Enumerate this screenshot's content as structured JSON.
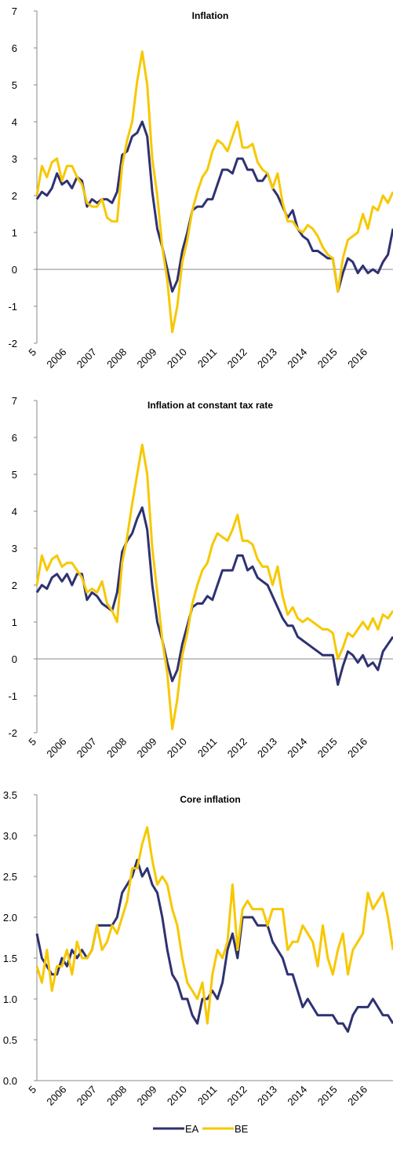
{
  "chart_data": [
    {
      "type": "line",
      "title": "Inflation",
      "categories": [
        "5",
        null,
        null,
        null,
        null,
        null,
        "2006",
        null,
        null,
        null,
        null,
        null,
        "2007",
        null,
        null,
        null,
        null,
        null,
        "2008",
        null,
        null,
        null,
        null,
        null,
        "2009",
        null,
        null,
        null,
        null,
        null,
        "2010",
        null,
        null,
        null,
        null,
        null,
        "2011",
        null,
        null,
        null,
        null,
        null,
        "2012",
        null,
        null,
        null,
        null,
        null,
        "2013",
        null,
        null,
        null,
        null,
        null,
        "2014",
        null,
        null,
        null,
        null,
        null,
        "2015",
        null,
        null,
        null,
        null,
        null,
        "2016",
        null,
        null,
        null,
        null,
        null
      ],
      "series": [
        {
          "color": "#2e3272",
          "values": [
            1.9,
            2.1,
            2.0,
            2.2,
            2.6,
            2.3,
            2.4,
            2.2,
            2.5,
            2.4,
            1.7,
            1.9,
            1.8,
            1.9,
            1.9,
            1.8,
            2.1,
            3.1,
            3.2,
            3.6,
            3.7,
            4.0,
            3.6,
            2.1,
            1.1,
            0.6,
            0.0,
            -0.6,
            -0.3,
            0.5,
            1.0,
            1.6,
            1.7,
            1.7,
            1.9,
            1.9,
            2.3,
            2.7,
            2.7,
            2.6,
            3.0,
            3.0,
            2.7,
            2.7,
            2.4,
            2.4,
            2.6,
            2.2,
            2.0,
            1.7,
            1.4,
            1.6,
            1.1,
            0.9,
            0.8,
            0.5,
            0.5,
            0.4,
            0.3,
            0.3,
            -0.6,
            -0.1,
            0.3,
            0.2,
            -0.1,
            0.1,
            -0.1,
            0.0,
            -0.1,
            0.2,
            0.4,
            1.1
          ]
        },
        {
          "color": "#f7c800",
          "values": [
            2.0,
            2.8,
            2.5,
            2.9,
            3.0,
            2.4,
            2.8,
            2.8,
            2.5,
            2.3,
            1.8,
            1.7,
            1.7,
            1.9,
            1.4,
            1.3,
            1.3,
            2.8,
            3.5,
            4.0,
            5.1,
            5.9,
            5.0,
            3.0,
            2.0,
            0.6,
            -0.3,
            -1.7,
            -1.0,
            0.2,
            0.8,
            1.6,
            2.1,
            2.5,
            2.7,
            3.2,
            3.5,
            3.4,
            3.2,
            3.6,
            4.0,
            3.3,
            3.3,
            3.4,
            2.9,
            2.7,
            2.6,
            2.2,
            2.6,
            1.8,
            1.3,
            1.3,
            1.1,
            1.0,
            1.2,
            1.1,
            0.9,
            0.6,
            0.4,
            0.3,
            -0.6,
            0.3,
            0.8,
            0.9,
            1.0,
            1.5,
            1.1,
            1.7,
            1.6,
            2.0,
            1.8,
            2.1
          ]
        }
      ],
      "ylim": [
        -2,
        7
      ],
      "yticks": [
        -2,
        -1,
        0,
        1,
        2,
        3,
        4,
        5,
        6,
        7
      ]
    },
    {
      "type": "line",
      "title": "Inflation at constant tax rate",
      "categories": [
        "5",
        null,
        null,
        null,
        null,
        null,
        "2006",
        null,
        null,
        null,
        null,
        null,
        "2007",
        null,
        null,
        null,
        null,
        null,
        "2008",
        null,
        null,
        null,
        null,
        null,
        "2009",
        null,
        null,
        null,
        null,
        null,
        "2010",
        null,
        null,
        null,
        null,
        null,
        "2011",
        null,
        null,
        null,
        null,
        null,
        "2012",
        null,
        null,
        null,
        null,
        null,
        "2013",
        null,
        null,
        null,
        null,
        null,
        "2014",
        null,
        null,
        null,
        null,
        null,
        "2015",
        null,
        null,
        null,
        null,
        null,
        "2016",
        null,
        null,
        null,
        null,
        null
      ],
      "series": [
        {
          "color": "#2e3272",
          "values": [
            1.8,
            2.0,
            1.9,
            2.2,
            2.3,
            2.1,
            2.3,
            2.0,
            2.3,
            2.3,
            1.6,
            1.8,
            1.7,
            1.5,
            1.4,
            1.3,
            1.8,
            2.9,
            3.2,
            3.4,
            3.8,
            4.1,
            3.5,
            2.0,
            1.0,
            0.5,
            -0.1,
            -0.6,
            -0.3,
            0.4,
            0.9,
            1.4,
            1.5,
            1.5,
            1.7,
            1.6,
            2.0,
            2.4,
            2.4,
            2.4,
            2.8,
            2.8,
            2.4,
            2.5,
            2.2,
            2.1,
            2.0,
            1.7,
            1.4,
            1.1,
            0.9,
            0.9,
            0.6,
            0.5,
            0.4,
            0.3,
            0.2,
            0.1,
            0.1,
            0.1,
            -0.7,
            -0.2,
            0.2,
            0.1,
            -0.1,
            0.1,
            -0.2,
            -0.1,
            -0.3,
            0.2,
            0.4,
            0.6
          ]
        },
        {
          "color": "#f7c800",
          "values": [
            2.0,
            2.8,
            2.4,
            2.7,
            2.8,
            2.5,
            2.6,
            2.6,
            2.4,
            2.2,
            1.8,
            1.9,
            1.8,
            2.1,
            1.5,
            1.3,
            1.0,
            2.6,
            3.3,
            4.2,
            5.0,
            5.8,
            5.0,
            3.0,
            1.8,
            0.5,
            -0.4,
            -1.9,
            -1.1,
            0.1,
            0.7,
            1.5,
            2.0,
            2.4,
            2.6,
            3.1,
            3.4,
            3.3,
            3.2,
            3.5,
            3.9,
            3.2,
            3.2,
            3.1,
            2.7,
            2.5,
            2.5,
            2.0,
            2.5,
            1.7,
            1.2,
            1.4,
            1.1,
            1.0,
            1.1,
            1.0,
            0.9,
            0.8,
            0.8,
            0.7,
            0.0,
            0.3,
            0.7,
            0.6,
            0.8,
            1.0,
            0.8,
            1.1,
            0.8,
            1.2,
            1.1,
            1.3
          ]
        }
      ],
      "ylim": [
        -2,
        7
      ],
      "yticks": [
        -2,
        -1,
        0,
        1,
        2,
        3,
        4,
        5,
        6,
        7
      ]
    },
    {
      "type": "line",
      "title": "Core inflation",
      "categories": [
        "5",
        null,
        null,
        null,
        null,
        null,
        "2006",
        null,
        null,
        null,
        null,
        null,
        "2007",
        null,
        null,
        null,
        null,
        null,
        "2008",
        null,
        null,
        null,
        null,
        null,
        "2009",
        null,
        null,
        null,
        null,
        null,
        "2010",
        null,
        null,
        null,
        null,
        null,
        "2011",
        null,
        null,
        null,
        null,
        null,
        "2012",
        null,
        null,
        null,
        null,
        null,
        "2013",
        null,
        null,
        null,
        null,
        null,
        "2014",
        null,
        null,
        null,
        null,
        null,
        "2015",
        null,
        null,
        null,
        null,
        null,
        "2016",
        null,
        null,
        null,
        null,
        null
      ],
      "series": [
        {
          "name": "EA",
          "color": "#2e3272",
          "values": [
            1.8,
            1.5,
            1.4,
            1.3,
            1.3,
            1.5,
            1.4,
            1.6,
            1.5,
            1.6,
            1.5,
            1.6,
            1.9,
            1.9,
            1.9,
            1.9,
            2.0,
            2.3,
            2.4,
            2.5,
            2.7,
            2.5,
            2.6,
            2.4,
            2.3,
            2.0,
            1.6,
            1.3,
            1.2,
            1.0,
            1.0,
            0.8,
            0.7,
            1.0,
            1.0,
            1.1,
            1.0,
            1.2,
            1.6,
            1.8,
            1.5,
            2.0,
            2.0,
            2.0,
            1.9,
            1.9,
            1.9,
            1.7,
            1.6,
            1.5,
            1.3,
            1.3,
            1.1,
            0.9,
            1.0,
            0.9,
            0.8,
            0.8,
            0.8,
            0.8,
            0.7,
            0.7,
            0.6,
            0.8,
            0.9,
            0.9,
            0.9,
            1.0,
            0.9,
            0.8,
            0.8,
            0.7
          ]
        },
        {
          "name": "BE",
          "color": "#f7c800",
          "values": [
            1.4,
            1.2,
            1.6,
            1.1,
            1.4,
            1.4,
            1.6,
            1.3,
            1.7,
            1.5,
            1.5,
            1.6,
            1.9,
            1.6,
            1.7,
            1.9,
            1.8,
            2.0,
            2.2,
            2.6,
            2.6,
            2.9,
            3.1,
            2.7,
            2.4,
            2.5,
            2.4,
            2.1,
            1.9,
            1.5,
            1.2,
            1.1,
            1.0,
            1.2,
            0.7,
            1.3,
            1.6,
            1.5,
            1.7,
            2.4,
            1.6,
            2.1,
            2.2,
            2.1,
            2.1,
            2.1,
            1.9,
            2.1,
            2.1,
            2.1,
            1.6,
            1.7,
            1.7,
            1.9,
            1.8,
            1.7,
            1.4,
            1.9,
            1.5,
            1.3,
            1.6,
            1.8,
            1.3,
            1.6,
            1.7,
            1.8,
            2.3,
            2.1,
            2.2,
            2.3,
            2.0,
            1.6
          ]
        }
      ],
      "ylim": [
        0,
        3.5
      ],
      "yticks": [
        {
          "value": 0,
          "label": "0.0"
        },
        0.5,
        {
          "value": 1,
          "label": "1.0"
        },
        1.5,
        {
          "value": 2,
          "label": "2.0"
        },
        2.5,
        {
          "value": 3,
          "label": "3.0"
        },
        3.5
      ]
    }
  ]
}
